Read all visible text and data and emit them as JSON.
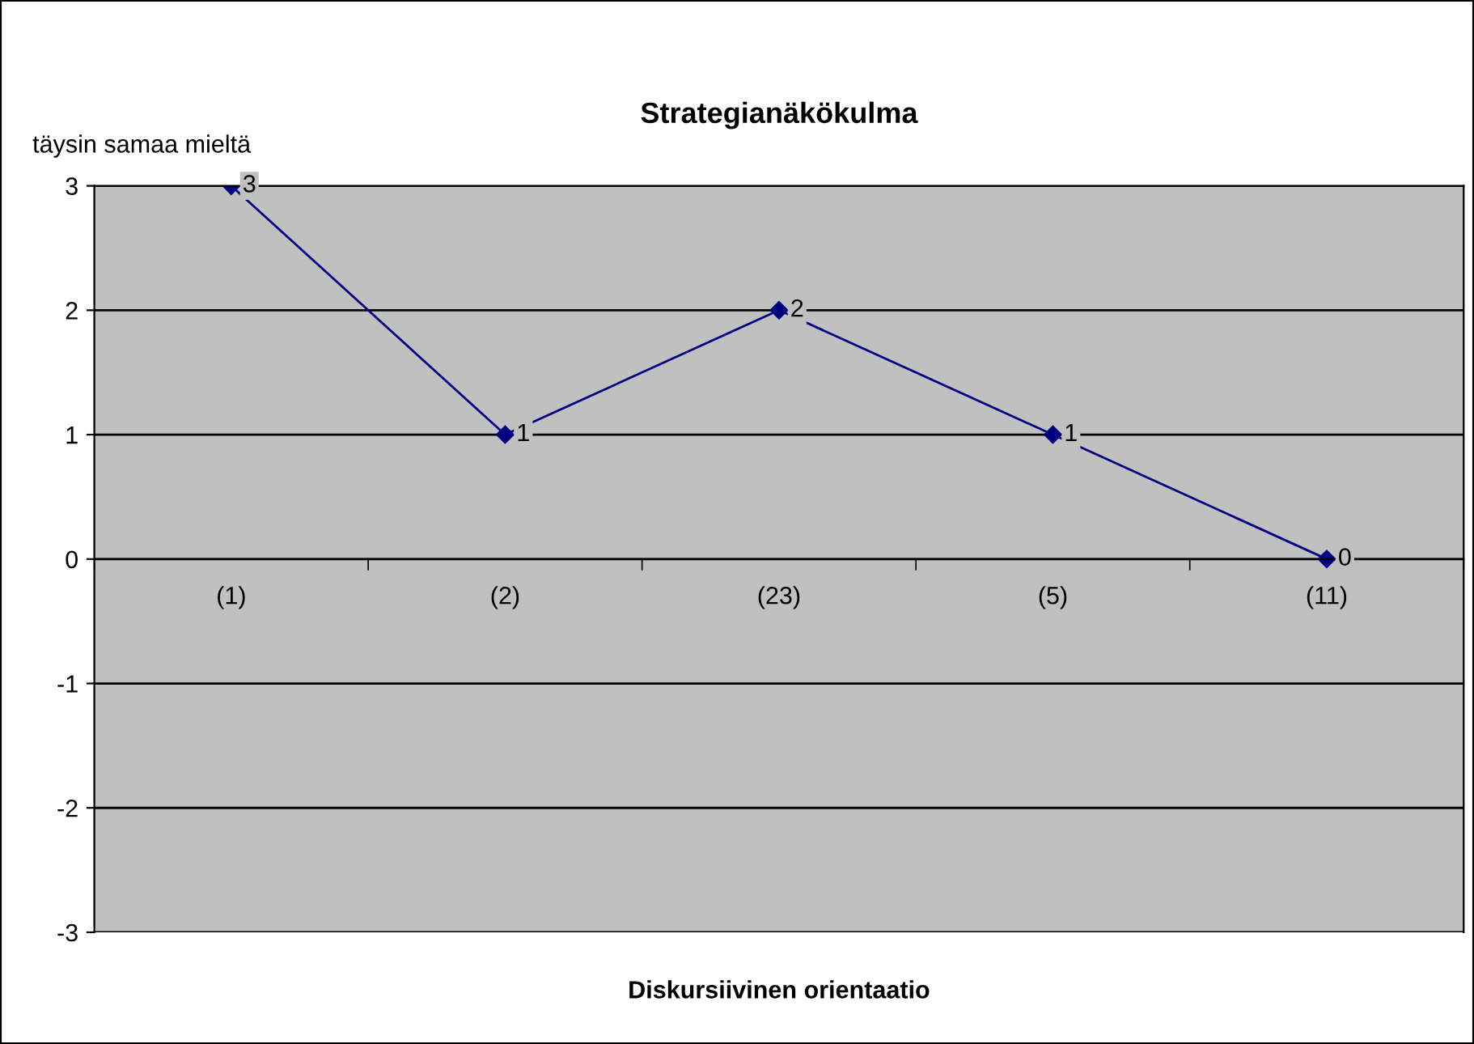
{
  "chart_data": {
    "type": "line",
    "title": "Strategianäkökulma",
    "ylabel": "täysin samaa mieltä",
    "xlabel": "Diskursiivinen orientaatio",
    "categories": [
      "(1)",
      "(2)",
      "(23)",
      "(5)",
      "(11)"
    ],
    "series": [
      {
        "color": "#000080",
        "values": [
          3,
          1,
          2,
          1,
          0
        ]
      }
    ],
    "ylim": [
      -3,
      3
    ],
    "yticks": [
      -3,
      -2,
      -1,
      0,
      1,
      2,
      3
    ],
    "grid": "y",
    "marker": "diamond",
    "line_style": "solid",
    "data_labels": true
  }
}
